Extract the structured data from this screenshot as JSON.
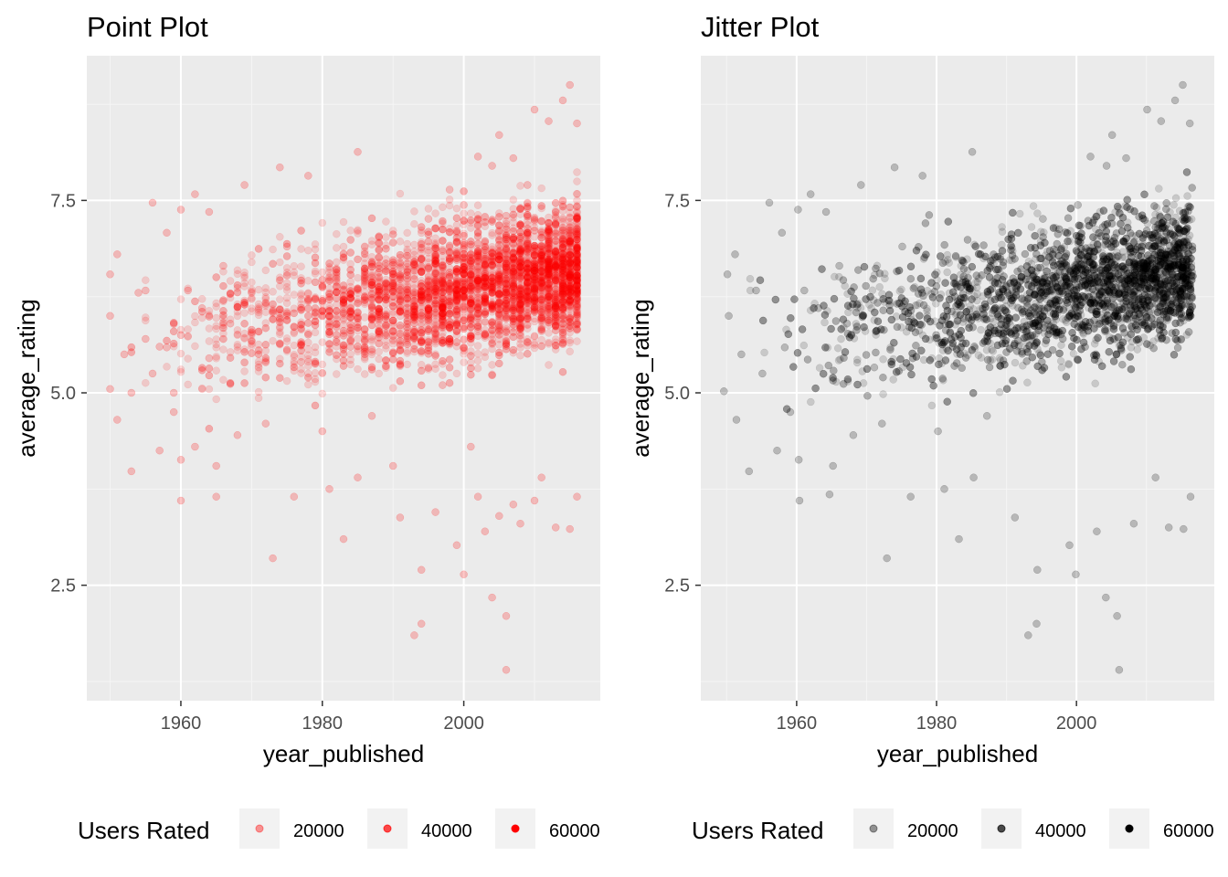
{
  "chart_data": [
    {
      "type": "scatter",
      "title": "Point Plot",
      "xlabel": "year_published",
      "ylabel": "average_rating",
      "xlim": [
        1946.7,
        2019.3
      ],
      "ylim": [
        1.0,
        9.38
      ],
      "xticks": [
        {
          "value": 1960,
          "label": "1960"
        },
        {
          "value": 1980,
          "label": "1980"
        },
        {
          "value": 2000,
          "label": "2000"
        }
      ],
      "yticks": [
        {
          "value": 2.5,
          "label": "2.5"
        },
        {
          "value": 5.0,
          "label": "5.0"
        },
        {
          "value": 7.5,
          "label": "7.5"
        }
      ],
      "grid": true,
      "point_color": "#ff0000",
      "point_alpha": 0.15,
      "legend": {
        "title": "Users Rated",
        "position": "bottom",
        "entries": [
          {
            "label": "20000",
            "value": 20000
          },
          {
            "label": "40000",
            "value": 40000
          },
          {
            "label": "60000",
            "value": 60000
          }
        ]
      },
      "points": [
        [
          1950,
          6.54
        ],
        [
          1950,
          6.0
        ],
        [
          1950,
          5.05
        ],
        [
          1951,
          6.8
        ],
        [
          1951,
          4.65
        ],
        [
          1952,
          5.5
        ],
        [
          1953,
          5.0
        ],
        [
          1953,
          3.98
        ],
        [
          1954,
          6.3
        ],
        [
          1955,
          6.33
        ],
        [
          1955,
          5.7
        ],
        [
          1956,
          7.47
        ],
        [
          1956,
          5.25
        ],
        [
          1957,
          4.25
        ],
        [
          1957,
          5.6
        ],
        [
          1958,
          5.59
        ],
        [
          1958,
          7.08
        ],
        [
          1959,
          4.75
        ],
        [
          1959,
          5.0
        ],
        [
          1960,
          7.38
        ],
        [
          1960,
          5.75
        ],
        [
          1960,
          4.13
        ],
        [
          1960,
          3.6
        ],
        [
          1961,
          6.33
        ],
        [
          1962,
          7.58
        ],
        [
          1962,
          4.3
        ],
        [
          1963,
          6.1
        ],
        [
          1964,
          7.35
        ],
        [
          1964,
          5.45
        ],
        [
          1965,
          4.05
        ],
        [
          1965,
          3.65
        ],
        [
          1966,
          6.65
        ],
        [
          1967,
          5.9
        ],
        [
          1968,
          4.45
        ],
        [
          1969,
          7.7
        ],
        [
          1970,
          6.3
        ],
        [
          1971,
          5.33
        ],
        [
          1972,
          4.6
        ],
        [
          1973,
          2.85
        ],
        [
          1974,
          7.93
        ],
        [
          1975,
          6.9
        ],
        [
          1976,
          3.65
        ],
        [
          1977,
          5.4
        ],
        [
          1978,
          7.82
        ],
        [
          1979,
          6.0
        ],
        [
          1980,
          4.5
        ],
        [
          1981,
          3.75
        ],
        [
          1982,
          6.6
        ],
        [
          1983,
          3.1
        ],
        [
          1984,
          5.6
        ],
        [
          1985,
          8.13
        ],
        [
          1985,
          3.9
        ],
        [
          1987,
          4.7
        ],
        [
          1988,
          7.02
        ],
        [
          1989,
          5.35
        ],
        [
          1990,
          4.05
        ],
        [
          1991,
          3.38
        ],
        [
          1992,
          6.6
        ],
        [
          1993,
          1.85
        ],
        [
          1994,
          2.0
        ],
        [
          1994,
          2.7
        ],
        [
          1995,
          7.26
        ],
        [
          1996,
          3.45
        ],
        [
          1997,
          5.1
        ],
        [
          1998,
          7.64
        ],
        [
          1999,
          3.02
        ],
        [
          2000,
          2.64
        ],
        [
          2000,
          7.44
        ],
        [
          2001,
          4.3
        ],
        [
          2002,
          8.07
        ],
        [
          2002,
          3.65
        ],
        [
          2003,
          3.2
        ],
        [
          2004,
          2.34
        ],
        [
          2004,
          7.95
        ],
        [
          2005,
          8.35
        ],
        [
          2005,
          3.4
        ],
        [
          2006,
          2.1
        ],
        [
          2006,
          1.4
        ],
        [
          2006,
          7.3
        ],
        [
          2007,
          8.05
        ],
        [
          2007,
          3.55
        ],
        [
          2008,
          3.3
        ],
        [
          2009,
          7.7
        ],
        [
          2010,
          8.68
        ],
        [
          2010,
          3.6
        ],
        [
          2011,
          3.9
        ],
        [
          2012,
          8.53
        ],
        [
          2013,
          3.25
        ],
        [
          2014,
          8.8
        ],
        [
          2015,
          9.0
        ],
        [
          2015,
          3.23
        ],
        [
          2016,
          8.5
        ],
        [
          2016,
          3.65
        ]
      ]
    },
    {
      "type": "scatter",
      "title": "Jitter Plot",
      "xlabel": "year_published",
      "ylabel": "average_rating",
      "xlim": [
        1946.3,
        2019.7
      ],
      "ylim": [
        1.0,
        9.38
      ],
      "xticks": [
        {
          "value": 1960,
          "label": "1960"
        },
        {
          "value": 1980,
          "label": "1980"
        },
        {
          "value": 2000,
          "label": "2000"
        }
      ],
      "yticks": [
        {
          "value": 2.5,
          "label": "2.5"
        },
        {
          "value": 5.0,
          "label": "5.0"
        },
        {
          "value": 7.5,
          "label": "7.5"
        }
      ],
      "grid": true,
      "point_color": "#000000",
      "point_alpha": 0.15,
      "legend": {
        "title": "Users Rated",
        "position": "bottom",
        "entries": [
          {
            "label": "20000",
            "value": 20000
          },
          {
            "label": "40000",
            "value": 40000
          },
          {
            "label": "60000",
            "value": 60000
          }
        ]
      },
      "points": [
        [
          1949.6,
          5.02
        ],
        [
          1950.1,
          6.54
        ],
        [
          1950.3,
          6.0
        ],
        [
          1951.2,
          6.8
        ],
        [
          1951.4,
          4.65
        ],
        [
          1952.1,
          5.5
        ],
        [
          1953.2,
          3.98
        ],
        [
          1954.2,
          6.33
        ],
        [
          1955.1,
          5.25
        ],
        [
          1956.1,
          7.47
        ],
        [
          1957.2,
          4.25
        ],
        [
          1957.9,
          7.08
        ],
        [
          1958.3,
          5.59
        ],
        [
          1959.1,
          4.75
        ],
        [
          1960.2,
          7.38
        ],
        [
          1960.3,
          4.13
        ],
        [
          1960.4,
          3.6
        ],
        [
          1961.1,
          6.33
        ],
        [
          1962.0,
          7.58
        ],
        [
          1963.1,
          6.1
        ],
        [
          1964.2,
          7.35
        ],
        [
          1964.7,
          3.68
        ],
        [
          1965.2,
          4.05
        ],
        [
          1966.1,
          6.65
        ],
        [
          1967.2,
          5.9
        ],
        [
          1968.1,
          4.45
        ],
        [
          1969.2,
          7.7
        ],
        [
          1971.1,
          5.33
        ],
        [
          1972.2,
          4.6
        ],
        [
          1972.9,
          2.85
        ],
        [
          1974.0,
          7.93
        ],
        [
          1975.1,
          6.9
        ],
        [
          1976.3,
          3.65
        ],
        [
          1978.0,
          7.82
        ],
        [
          1980.2,
          4.5
        ],
        [
          1981.1,
          3.75
        ],
        [
          1983.2,
          3.1
        ],
        [
          1985.1,
          8.13
        ],
        [
          1985.3,
          3.9
        ],
        [
          1987.2,
          4.7
        ],
        [
          1989.1,
          5.35
        ],
        [
          1991.2,
          3.38
        ],
        [
          1993.1,
          1.85
        ],
        [
          1994.3,
          2.0
        ],
        [
          1994.4,
          2.7
        ],
        [
          1995.2,
          7.26
        ],
        [
          1999.0,
          3.02
        ],
        [
          1999.9,
          2.64
        ],
        [
          2000.2,
          7.44
        ],
        [
          2002.0,
          8.07
        ],
        [
          2002.9,
          3.2
        ],
        [
          2004.2,
          2.34
        ],
        [
          2004.3,
          7.95
        ],
        [
          2005.1,
          8.35
        ],
        [
          2005.8,
          2.1
        ],
        [
          2006.1,
          1.4
        ],
        [
          2007.1,
          8.05
        ],
        [
          2008.2,
          3.3
        ],
        [
          2010.1,
          8.68
        ],
        [
          2011.3,
          3.9
        ],
        [
          2012.1,
          8.53
        ],
        [
          2013.2,
          3.25
        ],
        [
          2014.1,
          8.8
        ],
        [
          2015.2,
          9.0
        ],
        [
          2015.3,
          3.23
        ],
        [
          2016.2,
          8.5
        ],
        [
          2016.3,
          3.65
        ]
      ]
    }
  ]
}
